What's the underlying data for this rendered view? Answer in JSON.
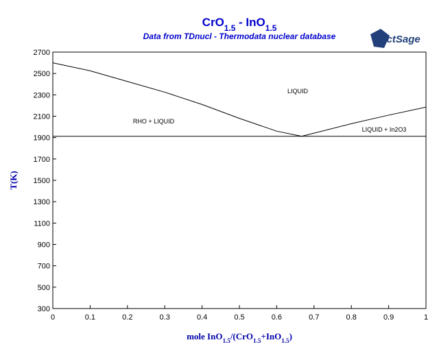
{
  "chart_data": {
    "type": "line",
    "title": [
      {
        "text": "CrO"
      },
      {
        "text": "1.5",
        "sub": true
      },
      {
        "text": " - InO"
      },
      {
        "text": "1.5",
        "sub": true
      }
    ],
    "subtitle": "Data from TDnucl - Thermodata nuclear database",
    "logo": "FactSage",
    "x_label": [
      {
        "text": "mole InO"
      },
      {
        "text": "1.5",
        "sub": true
      },
      {
        "text": "/(CrO"
      },
      {
        "text": "1.5",
        "sub": true
      },
      {
        "text": "+InO"
      },
      {
        "text": "1.5",
        "sub": true
      },
      {
        "text": ")"
      }
    ],
    "y_label": "T(K)",
    "annotations": [
      "LIQUID",
      "RHO + LIQUID",
      "LIQUID + In2O3"
    ],
    "series": [
      {
        "color": "#000000",
        "x": [
          0,
          0.1,
          0.2,
          0.3,
          0.4,
          0.5,
          0.6,
          0.667
        ],
        "values": [
          2600,
          2525,
          2425,
          2325,
          2210,
          2080,
          1960,
          1912
        ]
      },
      {
        "color": "#000000",
        "x": [
          0.667,
          0.8,
          0.9,
          1
        ],
        "values": [
          1912,
          2030,
          2110,
          2185
        ]
      },
      {
        "color": "#000000",
        "x": [
          0,
          1
        ],
        "values": [
          1912,
          1912
        ]
      }
    ],
    "xlim": [
      0,
      1
    ],
    "xticks": [
      0,
      0.1,
      0.2,
      0.3,
      0.4,
      0.5,
      0.6,
      0.7,
      0.8,
      0.9,
      1
    ],
    "ylim": [
      300,
      2700
    ],
    "yticks": [
      300,
      500,
      700,
      900,
      1100,
      1300,
      1500,
      1700,
      1900,
      2100,
      2300,
      2500,
      2700
    ]
  }
}
